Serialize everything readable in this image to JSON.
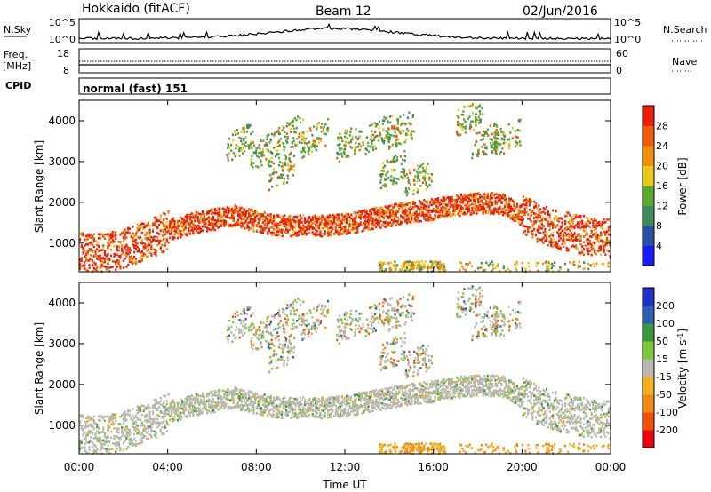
{
  "header": {
    "station": "Hokkaido (fitACF)",
    "beam": "Beam 12",
    "date": "02/Jun/2016"
  },
  "strip_nsky": {
    "label": "N.Sky",
    "ticks": [
      "10^5",
      "10^0"
    ],
    "right_ticks": [
      "10^5",
      "10^0"
    ],
    "right_label": "N.Search"
  },
  "strip_freq": {
    "label_line1": "Freq.",
    "label_line2": "[MHz]",
    "ticks": [
      "18",
      "8"
    ],
    "right_ticks": [
      "60",
      "0"
    ],
    "right_label": "Nave"
  },
  "strip_cpid": {
    "label": "CPID",
    "program": "normal (fast) 151"
  },
  "x_axis": {
    "label": "Time UT",
    "ticks": [
      "00:00",
      "04:00",
      "08:00",
      "12:00",
      "16:00",
      "20:00",
      "00:00"
    ]
  },
  "colors": {
    "power": [
      "#1a1aff",
      "#2b4fa0",
      "#3f8a5a",
      "#5aa832",
      "#e8c81a",
      "#f0900a",
      "#f05a0a",
      "#e81e0a"
    ],
    "velocity": [
      "#e8000a",
      "#f0500a",
      "#f08a14",
      "#f0b020",
      "#b8b8b0",
      "#7cc83a",
      "#3c963c",
      "#2d5fb0",
      "#2030c0"
    ]
  },
  "chart_data": [
    {
      "type": "heatmap",
      "panel": "power",
      "ylabel": "Slant Range [km]",
      "yticks": [
        "1000",
        "2000",
        "3000",
        "4000"
      ],
      "ylim": [
        300,
        4500
      ],
      "xlim_hours": [
        0,
        24
      ],
      "colorbar": {
        "label": "Power [dB]",
        "ticks": [
          "4",
          "8",
          "12",
          "16",
          "20",
          "24",
          "28"
        ],
        "range": [
          0,
          32
        ]
      },
      "main_band": {
        "time_h": [
          0,
          1,
          2,
          3,
          4,
          5,
          6,
          7,
          8,
          9,
          10,
          11,
          12,
          13,
          14,
          15,
          16,
          17,
          18,
          19,
          20,
          21,
          22,
          23,
          24
        ],
        "center_km": [
          850,
          780,
          900,
          1100,
          1350,
          1500,
          1600,
          1700,
          1550,
          1450,
          1450,
          1450,
          1500,
          1600,
          1700,
          1800,
          1850,
          1950,
          2000,
          2000,
          1700,
          1450,
          1300,
          1200,
          1150
        ]
      }
    },
    {
      "type": "heatmap",
      "panel": "velocity",
      "ylabel": "Slant Range [km]",
      "yticks": [
        "1000",
        "2000",
        "3000",
        "4000"
      ],
      "ylim": [
        300,
        4500
      ],
      "xlim_hours": [
        0,
        24
      ],
      "colorbar": {
        "label": "Velocity [m s^-1]",
        "ticks": [
          "200",
          "100",
          "50",
          "15",
          "-15",
          "-50",
          "-100",
          "-200"
        ],
        "range": [
          -250,
          250
        ]
      }
    }
  ]
}
